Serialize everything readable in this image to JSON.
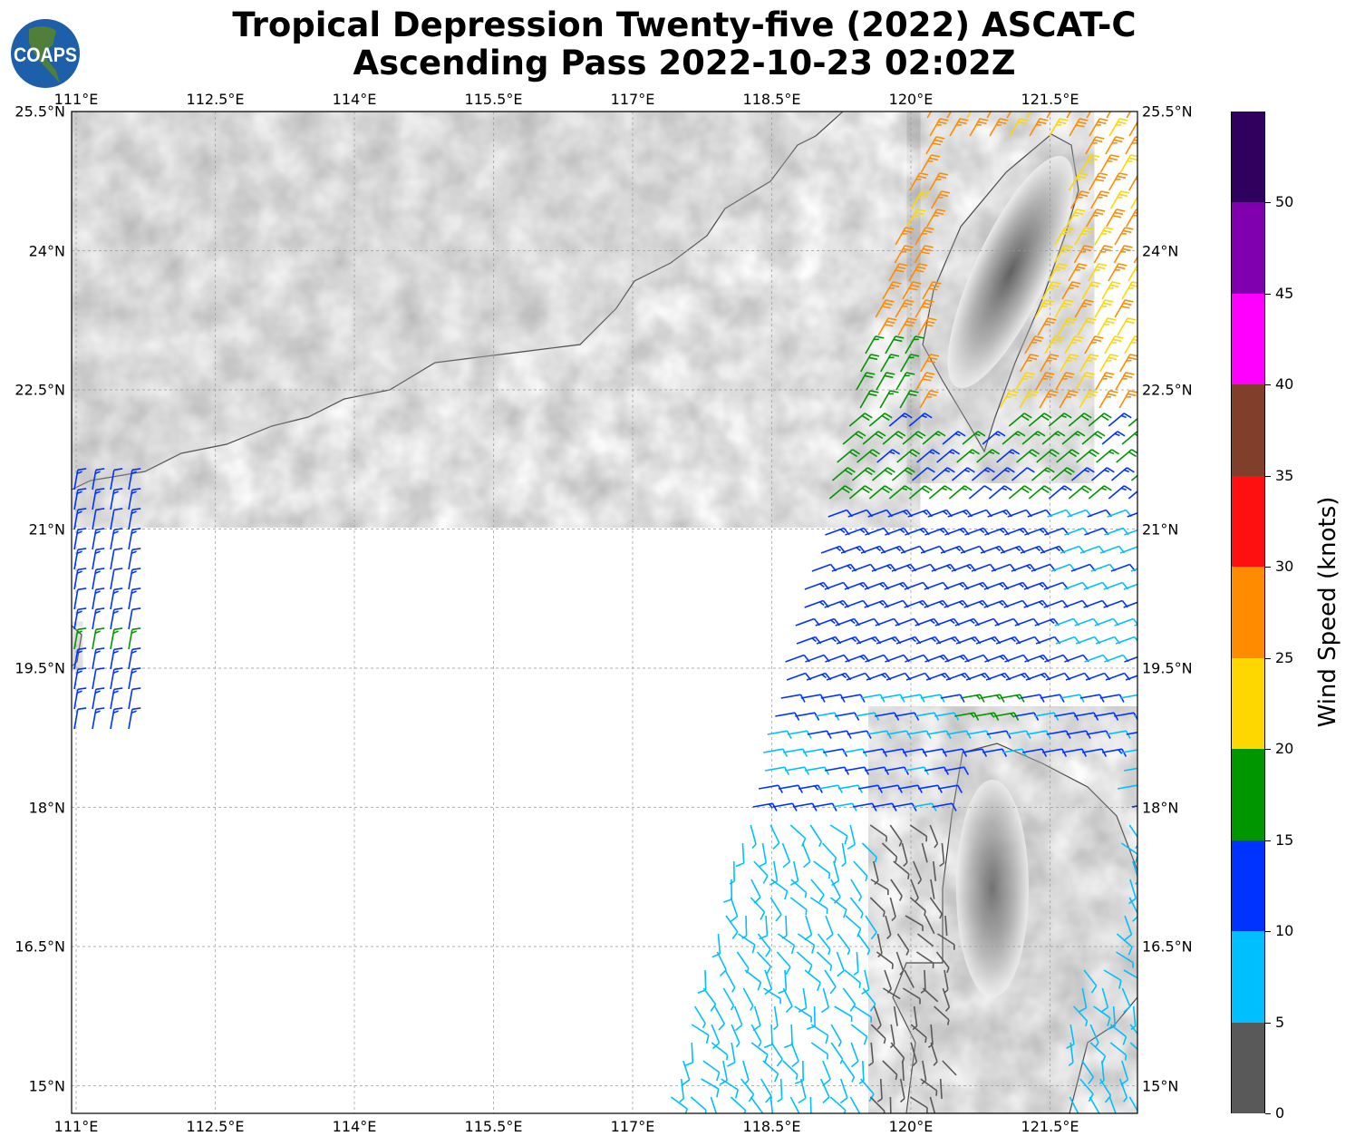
{
  "title": {
    "line1": "Tropical Depression Twenty-five (2022) ASCAT-C",
    "line2": "Ascending Pass 2022-10-23 02:02Z"
  },
  "logo_text": "COAPS",
  "map": {
    "lon_range": [
      110.95,
      122.44
    ],
    "lat_range": [
      14.7,
      25.5
    ],
    "lon_ticks": [
      {
        "v": 111,
        "label": "111°E"
      },
      {
        "v": 112.5,
        "label": "112.5°E"
      },
      {
        "v": 114,
        "label": "114°E"
      },
      {
        "v": 115.5,
        "label": "115.5°E"
      },
      {
        "v": 117,
        "label": "117°E"
      },
      {
        "v": 118.5,
        "label": "118.5°E"
      },
      {
        "v": 120,
        "label": "120°E"
      },
      {
        "v": 121.5,
        "label": "121.5°E"
      }
    ],
    "lat_ticks": [
      {
        "v": 25.5,
        "label": "25.5°N"
      },
      {
        "v": 24,
        "label": "24°N"
      },
      {
        "v": 22.5,
        "label": "22.5°N"
      },
      {
        "v": 21,
        "label": "21°N"
      },
      {
        "v": 19.5,
        "label": "19.5°N"
      },
      {
        "v": 18,
        "label": "18°N"
      },
      {
        "v": 16.5,
        "label": "16.5°N"
      },
      {
        "v": 15,
        "label": "15°N"
      }
    ]
  },
  "colorbar": {
    "label": "Wind Speed (knots)",
    "range": [
      0,
      55
    ],
    "ticks": [
      {
        "v": 0,
        "label": "0"
      },
      {
        "v": 5,
        "label": "5"
      },
      {
        "v": 10,
        "label": "10"
      },
      {
        "v": 15,
        "label": "15"
      },
      {
        "v": 20,
        "label": "20"
      },
      {
        "v": 25,
        "label": "25"
      },
      {
        "v": 30,
        "label": "30"
      },
      {
        "v": 35,
        "label": "35"
      },
      {
        "v": 40,
        "label": "40"
      },
      {
        "v": 45,
        "label": "45"
      },
      {
        "v": 50,
        "label": "50"
      }
    ],
    "colors": [
      "#595959",
      "#00bfff",
      "#0033ff",
      "#009600",
      "#ffd700",
      "#ff8c00",
      "#ff1010",
      "#7f3f2a",
      "#ff00ff",
      "#8000b0",
      "#30005f"
    ]
  }
}
